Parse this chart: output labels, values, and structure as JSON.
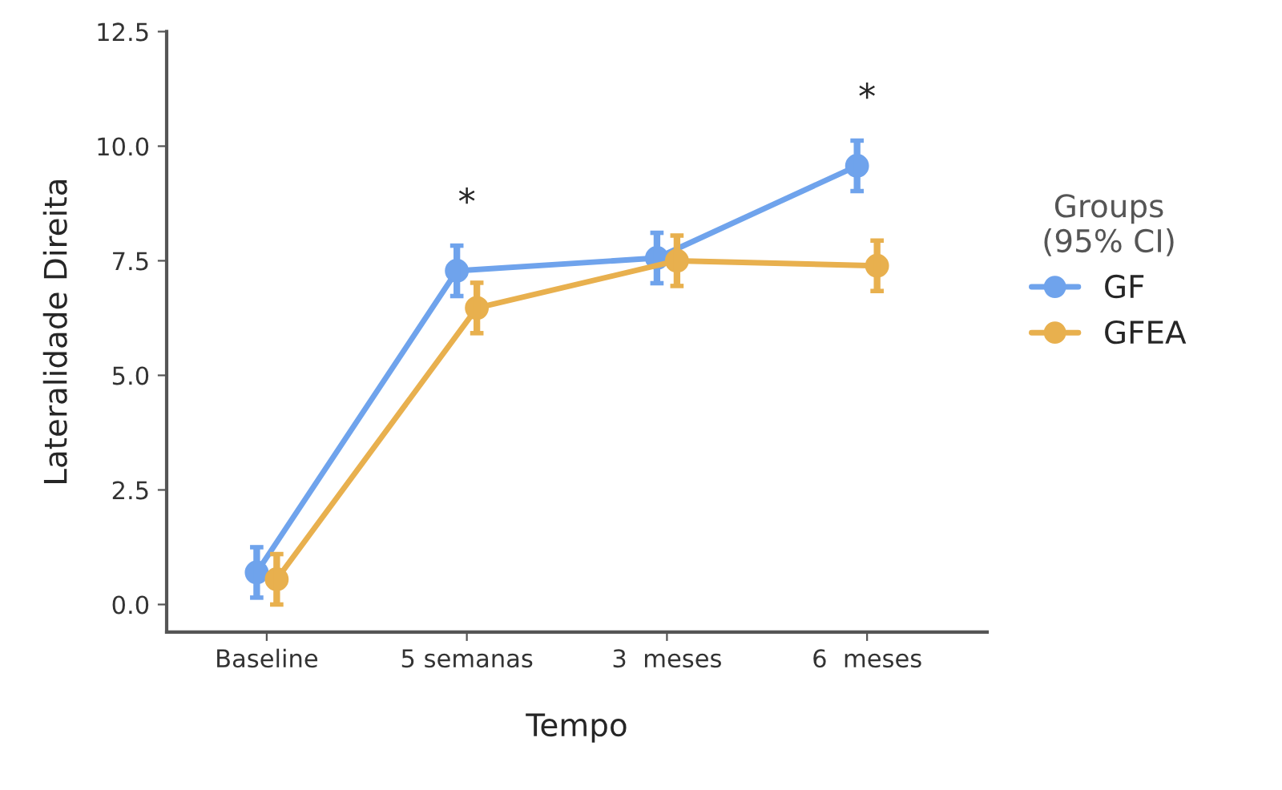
{
  "chart_data": {
    "type": "line",
    "xlabel": "Tempo",
    "ylabel": "Lateralidade Direita",
    "legend_title": "Groups\n(95% CI)",
    "categories": [
      "Baseline",
      "5 semanas",
      "3  meses",
      "6  meses"
    ],
    "series": [
      {
        "name": "GF",
        "color": "#6fa3ec",
        "values": [
          0.7,
          7.28,
          7.56,
          9.57
        ],
        "errors": [
          0.55,
          0.55,
          0.55,
          0.55
        ]
      },
      {
        "name": "GFEA",
        "color": "#e8b04e",
        "values": [
          0.55,
          6.47,
          7.5,
          7.39
        ],
        "errors": [
          0.55,
          0.55,
          0.55,
          0.55
        ]
      }
    ],
    "ylim": [
      -0.6,
      12.5
    ],
    "yticks": [
      {
        "value": 0,
        "label": "0.0"
      },
      {
        "value": 2.5,
        "label": "2.5"
      },
      {
        "value": 5,
        "label": "5.0"
      },
      {
        "value": 7.5,
        "label": "7.5"
      },
      {
        "value": 10,
        "label": "10.0"
      },
      {
        "value": 12.5,
        "label": "12.5"
      }
    ],
    "annotations": [
      {
        "text": "*",
        "x": "5 semanas",
        "y": 7.28
      },
      {
        "text": "*",
        "x": "6  meses",
        "y": 9.57
      }
    ],
    "marker": "circle",
    "line_style": "solid",
    "grid": false,
    "legend": "right"
  }
}
